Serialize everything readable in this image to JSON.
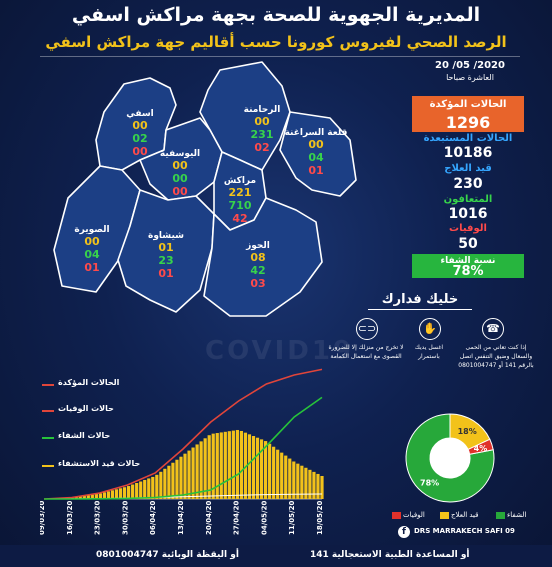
{
  "header": {
    "title": "المديرية الجهوية للصحة بجهة مراكش اسفي",
    "subtitle": "الرصد الصحي لفيروس كورونا حسب أقاليم جهة مراكش اسفي"
  },
  "report": {
    "date": "20 /05 /2020",
    "time": "العاشرة صباحا"
  },
  "stats": {
    "confirmed": {
      "label": "الحالات المؤكدة",
      "value": "1296"
    },
    "excluded": {
      "label": "الحالات المستبعدة",
      "value": "10186"
    },
    "under_treatment": {
      "label": "قيد العلاج",
      "value": "230"
    },
    "recovered": {
      "label": "المتعافون",
      "value": "1016"
    },
    "deaths": {
      "label": "الوفيات",
      "value": "50"
    },
    "recovery_rate": {
      "label": "نسبة الشفاء",
      "value": "78%"
    }
  },
  "map": {
    "provinces": [
      {
        "name": "اسفي",
        "values": [
          "00",
          "02",
          "00"
        ]
      },
      {
        "name": "الرحامنة",
        "values": [
          "00",
          "231",
          "02"
        ]
      },
      {
        "name": "قلعة السراغنة",
        "values": [
          "00",
          "04",
          "01"
        ]
      },
      {
        "name": "اليوسفية",
        "values": [
          "00",
          "00",
          "00"
        ]
      },
      {
        "name": "مراكش",
        "values": [
          "221",
          "710",
          "42"
        ]
      },
      {
        "name": "الصويرة",
        "values": [
          "00",
          "04",
          "01"
        ]
      },
      {
        "name": "شيشاوة",
        "values": [
          "01",
          "23",
          "01"
        ]
      },
      {
        "name": "الحوز",
        "values": [
          "08",
          "42",
          "03"
        ]
      }
    ]
  },
  "awareness": {
    "title": "خليك فدارك",
    "tips": [
      "لا تخرج من منزلك إلا للضرورة القصوى مع استعمال الكمامة",
      "اغسل يديك باستمرار",
      "إذا كنت تعاني من الحمى والسعال وضيق التنفس اتصل بالرقم 141 أو 0801004747"
    ],
    "icons": [
      "mask-icon",
      "hand-wash-icon",
      "phone-icon"
    ]
  },
  "watermark": "COVID19",
  "chart_data": [
    {
      "type": "line",
      "x": [
        "09/03/20",
        "16/03/20",
        "23/03/20",
        "30/03/20",
        "06/04/20",
        "13/04/20",
        "20/04/20",
        "27/04/20",
        "04/05/20",
        "11/05/20",
        "18/05/20"
      ],
      "series": [
        {
          "name": "الحالات المؤكدة",
          "color": "#e0453a",
          "values": [
            0,
            15,
            60,
            140,
            260,
            500,
            770,
            980,
            1150,
            1240,
            1296
          ]
        },
        {
          "name": "حالات الوفيات",
          "color": "#ffffff",
          "values": [
            0,
            1,
            4,
            9,
            15,
            22,
            30,
            38,
            44,
            48,
            50
          ]
        },
        {
          "name": "حالات الشفاء",
          "color": "#27c33a",
          "values": [
            0,
            0,
            2,
            6,
            15,
            40,
            90,
            250,
            530,
            820,
            1016
          ]
        },
        {
          "name": "حالات قيد الاستشفاء",
          "color": "#f2c21a",
          "values": [
            0,
            14,
            54,
            125,
            230,
            438,
            650,
            692,
            576,
            372,
            230
          ]
        }
      ]
    },
    {
      "type": "pie",
      "title": "",
      "labels": [
        "الشفاء",
        "قيد العلاج",
        "الوفيات"
      ],
      "values": [
        78,
        18,
        4
      ],
      "display": [
        "78%",
        "18%",
        "4%"
      ],
      "colors": [
        "#27a83a",
        "#f2c21a",
        "#e0312b"
      ]
    }
  ],
  "footer": {
    "facebook_handle": "DRS MARRAKECH SAFI 09",
    "samu": "أو المساعدة الطبية الاستعجالية  141",
    "alert_line": "أو اليقظة الوبائية  0801004747"
  }
}
